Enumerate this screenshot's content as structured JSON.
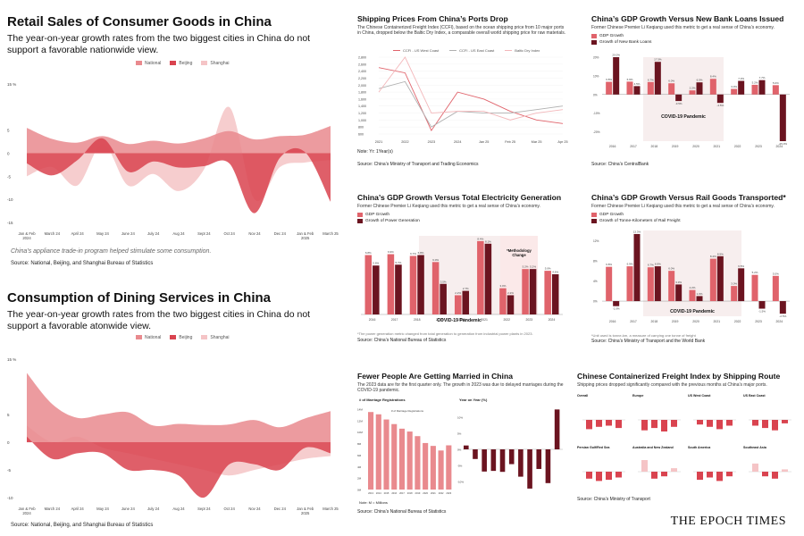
{
  "colors": {
    "national": "#e98a8e",
    "beijing": "#d9434f",
    "shanghai": "#f5c4c6",
    "gdp": "#e0636b",
    "dark": "#6b1420",
    "bg": "#f7eeee"
  },
  "retail": {
    "title": "Retail Sales of Consumer Goods in China",
    "subtitle": "The year-on-year growth rates from the two biggest cities in China do not support a favorable nationwide view.",
    "legend": [
      "National",
      "Beijing",
      "Shanghai"
    ],
    "note": "China’s appliance trade-in program helped stimulate some consumption.",
    "source": "Source: National, Beijing, and Shanghai Bureau of Statistics"
  },
  "dining": {
    "title": "Consumption of Dining Services in China",
    "subtitle": "The year-on-year growth rates from the two biggest cities in China do not support a favorable atonwide view.",
    "legend": [
      "National",
      "Beijing",
      "Shanghai"
    ],
    "source": "Source: National, Beijing, and Shanghai Bureau of Statistics"
  },
  "shipping": {
    "title": "Shipping Prices From China’s Ports Drop",
    "subtitle": "The Chinese Containerized Freight Index (CCFI), based on the ocean shipping price from 10 major ports in China, dropped below the Baltic Dry Index, a comparable overall world shipping price for raw materials.",
    "legend": [
      "CCFI - US West Coast",
      "CCFI - US East Coast",
      "Baltic Dry Index"
    ],
    "note": "Note: Yr: 1Year(s)",
    "source": "Source: China’s Ministry of Transport and Trading Economics"
  },
  "loans": {
    "title": "China’s GDP Growth Versus New Bank Loans Issued",
    "subtitle": "Former Chinese Premier Li Keqiang used this metric to get a real sense of China’s economy.",
    "legend": [
      "GDP Growth",
      "Growth of New Bank Loans"
    ],
    "pandemic": "COVID-19 Pandemic",
    "source": "Source: China’s CentralBank"
  },
  "electric": {
    "title": "China’s GDP Growth Versus Total Electricity Generation",
    "subtitle": "Former Chinese Premier Li Keqiang used this metric to get a real sense of China’s economy.",
    "legend": [
      "GDP Growth",
      "Growth of Power Generation"
    ],
    "pandemic": "COVID-19 Pandemic",
    "method": "*Methodology Change",
    "footnote": "*The power generation metric changed from total generation to generation from industrial power plants in 2023.",
    "source": "Source: China’s National Bureau of Statistics"
  },
  "rail": {
    "title": "China’s GDP Growth Versus Rail Goods Transported*",
    "subtitle": "Former Chinese Premier Li Keqiang used this metric to get a real sense of China’s economy.",
    "legend": [
      "GDP Growth",
      "Growth of Tonne-Kilometers of Rail Freight"
    ],
    "pandemic": "COVID-19 Pandemic",
    "footnote": "*Unit used is tonne-km, a measure of carrying one tonne of freight",
    "source": "Source: China’s Ministry of Transport and the World Bank"
  },
  "married": {
    "title": "Fewer People Are Getting Married in China",
    "subtitle": "The 2023 data are for the first quarter only. The growth in 2023 was due to delayed marriages during the COVID-19 pandemic.",
    "left_label": "# of Marriage Registrations",
    "right_label": "Year on Year (%)",
    "left_legend": "# of Marriage Registrations",
    "note": "Note: M = Millions",
    "source": "Source: China’s National Bureau of Statistics"
  },
  "freight": {
    "title": "Chinese Containerized Freight Index by Shipping Route",
    "subtitle": "Shipping prices dropped significantly compared with the previous months at China’s major ports.",
    "routes": [
      "Overall",
      "Europe",
      "US West Coast",
      "US East Coast",
      "Persian Gulf/Red Sea",
      "Australia and New Zealand",
      "South America",
      "Southeast Asia"
    ],
    "source": "Source: China’s Ministry of Transport"
  },
  "logo": "THE EPOCH TIMES",
  "chart_data": [
    {
      "type": "area",
      "title": "Retail Sales of Consumer Goods in China",
      "categories": [
        "Jan & Feb 2024",
        "March 24",
        "April 24",
        "May 24",
        "June 24",
        "July 24",
        "Aug 24",
        "Sept 24",
        "Oct 24",
        "Nov 24",
        "Dec 24",
        "Jan & Feb 2025",
        "March 25"
      ],
      "ylim": [
        -15,
        15
      ],
      "y_ticks": [
        "15 %",
        "5",
        "0",
        "-5",
        "-10",
        "-15"
      ],
      "series": [
        {
          "name": "National",
          "values": [
            5.5,
            3.1,
            2.3,
            3.7,
            2.0,
            2.7,
            2.1,
            3.2,
            4.8,
            3.0,
            3.7,
            4.0,
            5.9
          ]
        },
        {
          "name": "Beijing",
          "values": [
            -2.2,
            -4.8,
            -1.5,
            3.2,
            -4.0,
            -1.8,
            -3.1,
            -2.8,
            -2.2,
            -13.0,
            -1.0,
            0.2,
            -10.5
          ]
        },
        {
          "name": "Shanghai",
          "values": [
            -5.0,
            -3.0,
            -7.0,
            2.0,
            -7.0,
            -4.5,
            -8.2,
            -3.5,
            10.0,
            -10.0,
            -3.0,
            -2.0,
            -1.5
          ]
        }
      ]
    },
    {
      "type": "area",
      "title": "Consumption of Dining Services in China",
      "categories": [
        "Jan & Feb 2024",
        "March 24",
        "April 24",
        "May 24",
        "June 24",
        "July 24",
        "Aug 24",
        "Sept 24",
        "Oct 24",
        "Nov 24",
        "Dec 24",
        "Jan & Feb 2025",
        "March 25"
      ],
      "ylim": [
        -10,
        15
      ],
      "y_ticks": [
        "15 %",
        "5",
        "0",
        "-5",
        "-10"
      ],
      "series": [
        {
          "name": "National",
          "values": [
            12.5,
            6.9,
            4.4,
            5.0,
            5.4,
            3.0,
            3.3,
            3.1,
            3.2,
            4.0,
            2.7,
            4.3,
            5.6
          ]
        },
        {
          "name": "Beijing",
          "values": [
            1.0,
            -3.0,
            -2.0,
            -2.0,
            -5.0,
            -5.0,
            -6.0,
            -10.0,
            -4.0,
            -4.0,
            -5.0,
            -1.0,
            -2.0
          ]
        },
        {
          "name": "Shanghai",
          "values": [
            3.0,
            0.0,
            1.0,
            -1.0,
            -2.0,
            -3.0,
            -4.0,
            -5.0,
            -6.0,
            -5.0,
            -4.0,
            -3.0,
            -2.5
          ]
        }
      ]
    },
    {
      "type": "line",
      "title": "Shipping Prices From China’s Ports Drop",
      "categories": [
        "2021",
        "2022",
        "2023",
        "2024",
        "Jan 25",
        "Feb 25",
        "Mar 25",
        "Apr 25"
      ],
      "y_ticks": [
        "2,800",
        "2,600",
        "2,400",
        "2,200",
        "2,000",
        "1,800",
        "1,600",
        "1,400",
        "1,200",
        "1,000",
        "800",
        "600"
      ],
      "series": [
        {
          "name": "CCFI - US West Coast",
          "values": [
            2500,
            2350,
            700,
            1800,
            1600,
            1250,
            1000,
            900
          ]
        },
        {
          "name": "CCFI - US East Coast",
          "values": [
            1900,
            2100,
            800,
            1250,
            1200,
            1200,
            1300,
            1400
          ]
        },
        {
          "name": "Baltic Dry Index",
          "values": [
            1800,
            2800,
            1200,
            1250,
            1250,
            1000,
            1200,
            1300
          ]
        }
      ]
    },
    {
      "type": "bar",
      "title": "China’s GDP Growth Versus New Bank Loans Issued",
      "categories": [
        "2016",
        "2017",
        "2018",
        "2019",
        "2020",
        "2021",
        "2022",
        "2023",
        "2024"
      ],
      "series": [
        {
          "name": "GDP Growth",
          "values": [
            6.8,
            6.9,
            6.7,
            6.0,
            2.2,
            8.4,
            3.0,
            5.2,
            5.0
          ]
        },
        {
          "name": "Growth of New Bank Loans",
          "values": [
            20.0,
            4.5,
            17.5,
            -3.5,
            6.5,
            -4.5,
            7.3,
            7.7,
            -25.0
          ]
        }
      ]
    },
    {
      "type": "bar",
      "title": "China’s GDP Growth Versus Total Electricity Generation",
      "categories": [
        "2016",
        "2017",
        "2018",
        "2019",
        "2020",
        "2021",
        "2022",
        "2023",
        "2024"
      ],
      "series": [
        {
          "name": "GDP Growth",
          "values": [
            6.8,
            6.9,
            6.7,
            6.0,
            2.2,
            8.4,
            3.0,
            5.2,
            5.0
          ]
        },
        {
          "name": "Growth of Power Generation",
          "values": [
            5.6,
            5.7,
            6.8,
            3.5,
            2.7,
            8.1,
            2.2,
            5.2,
            4.6
          ]
        }
      ]
    },
    {
      "type": "bar",
      "title": "China’s GDP Growth Versus Rail Goods Transported*",
      "categories": [
        "2016",
        "2017",
        "2018",
        "2019",
        "2020",
        "2021",
        "2022",
        "2023",
        "2024"
      ],
      "series": [
        {
          "name": "GDP Growth",
          "values": [
            6.8,
            6.9,
            6.7,
            6.0,
            2.2,
            8.4,
            3.0,
            5.2,
            5.0
          ]
        },
        {
          "name": "Growth of Tonne-Kilometers of Rail Freight",
          "values": [
            -1.0,
            13.3,
            6.9,
            3.3,
            1.0,
            8.9,
            6.5,
            -1.5,
            -2.5
          ]
        }
      ]
    },
    {
      "type": "bar",
      "title": "Fewer People Are Getting Married in China",
      "categories": [
        "2013",
        "2014",
        "2015",
        "2016",
        "2017",
        "2018",
        "2019",
        "2020",
        "2021",
        "2022",
        "2023"
      ],
      "series": [
        {
          "name": "# of Marriage Registrations",
          "values": [
            13.5,
            13.1,
            12.2,
            11.4,
            10.6,
            10.1,
            9.3,
            8.1,
            7.6,
            6.8,
            7.7
          ]
        },
        {
          "name": "Year on Year (%)",
          "values": [
            1.2,
            -3.0,
            -6.9,
            -6.7,
            -7.0,
            -4.6,
            -8.5,
            -12.2,
            -6.1,
            -10.5,
            12.4
          ]
        }
      ]
    },
    {
      "type": "bar",
      "title": "Chinese Containerized Freight Index by Shipping Route",
      "series": [
        {
          "name": "Overall",
          "values": [
            -8,
            -6,
            -5,
            -7
          ]
        },
        {
          "name": "Europe",
          "values": [
            -9,
            -7,
            -10,
            -6
          ]
        },
        {
          "name": "US West Coast",
          "values": [
            -4,
            -6,
            -8,
            -5
          ]
        },
        {
          "name": "US East Coast",
          "values": [
            -5,
            -7,
            -9,
            -3
          ]
        },
        {
          "name": "Persian Gulf/Red Sea",
          "values": [
            -6,
            -8,
            -7,
            -5
          ]
        },
        {
          "name": "Australia and New Zealand",
          "values": [
            10,
            -6,
            -4,
            3
          ]
        },
        {
          "name": "South America",
          "values": [
            -7,
            -5,
            -8,
            -4
          ]
        },
        {
          "name": "Southeast Asia",
          "values": [
            7,
            -4,
            -6,
            2
          ]
        }
      ]
    }
  ]
}
